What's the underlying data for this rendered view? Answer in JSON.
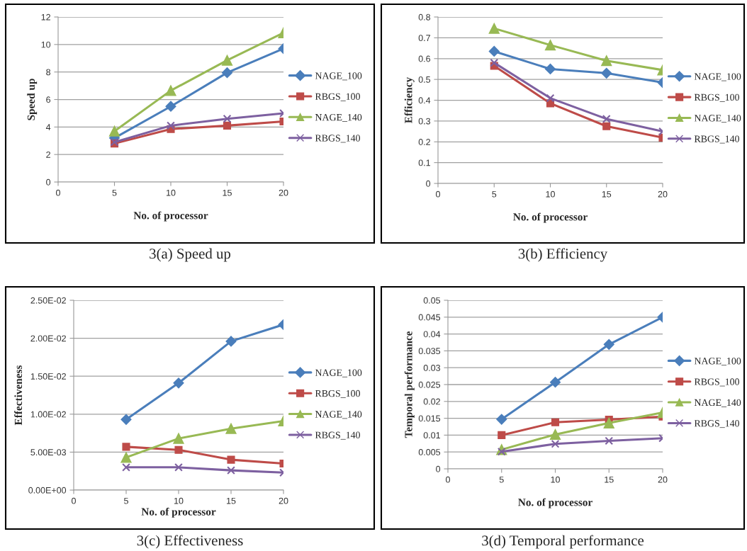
{
  "chart_data": [
    {
      "type": "line",
      "title": "3(a) Speed up",
      "xlabel": "No. of processor",
      "ylabel": "Speed up",
      "x": [
        5,
        10,
        15,
        20
      ],
      "xlim": [
        0,
        20
      ],
      "xticks": [
        0,
        5,
        10,
        15,
        20
      ],
      "ylim": [
        0,
        12
      ],
      "yticks": [
        0,
        2,
        4,
        6,
        8,
        10,
        12
      ],
      "grid": "y",
      "legend": "right",
      "series": [
        {
          "name": "NAGE_100",
          "color": "#4a7ebb",
          "marker": "diamond",
          "values": [
            3.2,
            5.5,
            7.95,
            9.7
          ]
        },
        {
          "name": "RBGS_100",
          "color": "#be4b48",
          "marker": "square",
          "values": [
            2.8,
            3.85,
            4.1,
            4.4
          ]
        },
        {
          "name": "NAGE_140",
          "color": "#98b954",
          "marker": "triangle",
          "values": [
            3.7,
            6.65,
            8.85,
            10.85
          ]
        },
        {
          "name": "RBGS_140",
          "color": "#7d60a0",
          "marker": "cross",
          "values": [
            2.9,
            4.1,
            4.6,
            5.0
          ]
        }
      ]
    },
    {
      "type": "line",
      "title": "3(b) Efficiency",
      "xlabel": "No. of processor",
      "ylabel": "Efficiency",
      "x": [
        5,
        10,
        15,
        20
      ],
      "xlim": [
        0,
        20
      ],
      "xticks": [
        0,
        5,
        10,
        15,
        20
      ],
      "ylim": [
        0,
        0.8
      ],
      "yticks": [
        0,
        0.1,
        0.2,
        0.3,
        0.4,
        0.5,
        0.6,
        0.7,
        0.8
      ],
      "grid": "y",
      "legend": "right",
      "series": [
        {
          "name": "NAGE_100",
          "color": "#4a7ebb",
          "marker": "diamond",
          "values": [
            0.635,
            0.55,
            0.53,
            0.485
          ]
        },
        {
          "name": "RBGS_100",
          "color": "#be4b48",
          "marker": "square",
          "values": [
            0.565,
            0.385,
            0.275,
            0.22
          ]
        },
        {
          "name": "NAGE_140",
          "color": "#98b954",
          "marker": "triangle",
          "values": [
            0.745,
            0.665,
            0.59,
            0.545
          ]
        },
        {
          "name": "RBGS_140",
          "color": "#7d60a0",
          "marker": "cross",
          "values": [
            0.58,
            0.41,
            0.31,
            0.25
          ]
        }
      ]
    },
    {
      "type": "line",
      "title": "3(c) Effectiveness",
      "xlabel": "No. of processor",
      "ylabel": "Effectiveness",
      "x": [
        5,
        10,
        15,
        20
      ],
      "xlim": [
        0,
        20
      ],
      "xticks": [
        0,
        5,
        10,
        15,
        20
      ],
      "ylim": [
        0,
        0.025
      ],
      "yticks": [
        {
          "value": 0,
          "label": "0.00E+00"
        },
        {
          "value": 0.005,
          "label": "5.00E-03"
        },
        {
          "value": 0.01,
          "label": "1.00E-02"
        },
        {
          "value": 0.015,
          "label": "1.50E-02"
        },
        {
          "value": 0.02,
          "label": "2.00E-02"
        },
        {
          "value": 0.025,
          "label": "2.50E-02"
        }
      ],
      "grid": "y",
      "legend": "right",
      "series": [
        {
          "name": "NAGE_100",
          "color": "#4a7ebb",
          "marker": "diamond",
          "values": [
            0.0093,
            0.0141,
            0.0196,
            0.0218
          ]
        },
        {
          "name": "RBGS_100",
          "color": "#be4b48",
          "marker": "square",
          "values": [
            0.0057,
            0.0053,
            0.004,
            0.0035
          ]
        },
        {
          "name": "NAGE_140",
          "color": "#98b954",
          "marker": "triangle",
          "values": [
            0.0043,
            0.0068,
            0.0081,
            0.0091
          ]
        },
        {
          "name": "RBGS_140",
          "color": "#7d60a0",
          "marker": "cross",
          "values": [
            0.003,
            0.003,
            0.0026,
            0.0023
          ]
        }
      ]
    },
    {
      "type": "line",
      "title": "3(d) Temporal performance",
      "xlabel": "No. of processor",
      "ylabel": "Temporal performance",
      "x": [
        5,
        10,
        15,
        20
      ],
      "xlim": [
        0,
        20
      ],
      "xticks": [
        0,
        5,
        10,
        15,
        20
      ],
      "ylim": [
        0,
        0.05
      ],
      "yticks": [
        0,
        0.005,
        0.01,
        0.015,
        0.02,
        0.025,
        0.03,
        0.035,
        0.04,
        0.045,
        0.05
      ],
      "grid": "y",
      "legend": "right",
      "series": [
        {
          "name": "NAGE_100",
          "color": "#4a7ebb",
          "marker": "diamond",
          "values": [
            0.0147,
            0.0257,
            0.0369,
            0.045
          ]
        },
        {
          "name": "RBGS_100",
          "color": "#be4b48",
          "marker": "square",
          "values": [
            0.01,
            0.0138,
            0.0146,
            0.0155
          ]
        },
        {
          "name": "NAGE_140",
          "color": "#98b954",
          "marker": "triangle",
          "values": [
            0.0057,
            0.0102,
            0.0136,
            0.0167
          ]
        },
        {
          "name": "RBGS_140",
          "color": "#7d60a0",
          "marker": "cross",
          "values": [
            0.0051,
            0.0074,
            0.0083,
            0.0091
          ]
        }
      ]
    }
  ]
}
